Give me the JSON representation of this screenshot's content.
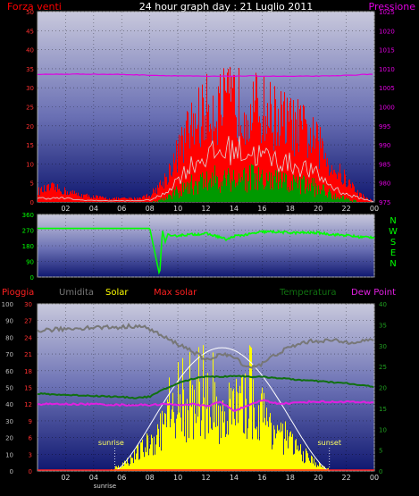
{
  "header": {
    "left_label": "Forza venti",
    "title": "24 hour graph day : 21 Luglio 2011",
    "right_label": "Pressione"
  },
  "colors": {
    "wind_max": "#ff0000",
    "wind_avg": "#d8d8d8",
    "wind_low": "#009900",
    "pressure": "#e000e0",
    "direction": "#00ff00",
    "rain": "#ff2020",
    "humidity": "#777777",
    "solar": "#ffff00",
    "max_solar": "#ffffff",
    "temperature": "#107010",
    "dew_point": "#e020e0",
    "compass": "#00ff00",
    "panel_top": "#c8c8dc",
    "panel_bottom": "#101870"
  },
  "chart_data": [
    {
      "type": "line",
      "name": "wind-pressure",
      "xticks": [
        "02",
        "04",
        "06",
        "08",
        "10",
        "12",
        "14",
        "16",
        "18",
        "20",
        "22",
        "00"
      ],
      "y_left_ticks": [
        "0",
        "5",
        "10",
        "15",
        "20",
        "25",
        "30",
        "35",
        "40",
        "45",
        "50"
      ],
      "y_right_ticks": [
        "975",
        "980",
        "985",
        "990",
        "995",
        "1000",
        "1005",
        "1010",
        "1015",
        "1020",
        "1025"
      ],
      "xlim": [
        0,
        24
      ],
      "ylim_left": [
        0,
        50
      ],
      "ylim_right": [
        975,
        1025
      ],
      "pressure_x": [
        0,
        3,
        6,
        9,
        12,
        15,
        18,
        21,
        24
      ],
      "pressure_y": [
        1008.5,
        1008.6,
        1008.5,
        1008.2,
        1008.0,
        1008.1,
        1008.0,
        1008.1,
        1008.6
      ],
      "wind_max_envelope_x": [
        0,
        1,
        2,
        3,
        5,
        7,
        8,
        9,
        10,
        11,
        12,
        13,
        14,
        15,
        16,
        17,
        18,
        19,
        20,
        21,
        22,
        23,
        24
      ],
      "wind_max_envelope_y": [
        3,
        4,
        3,
        2,
        1,
        1,
        2,
        6,
        14,
        22,
        26,
        27,
        28,
        27,
        26,
        24,
        22,
        20,
        16,
        10,
        6,
        2,
        0
      ],
      "wind_avg_envelope_y": [
        1,
        1,
        1,
        0.5,
        0.3,
        0.3,
        0.5,
        2,
        6,
        10,
        12,
        13,
        14,
        13,
        12,
        11,
        10,
        9,
        7,
        4,
        2,
        1,
        0
      ],
      "wind_low_envelope_y": [
        0,
        0,
        0,
        0,
        0,
        0,
        0,
        1,
        3,
        5,
        6,
        7,
        7,
        7,
        6,
        6,
        5,
        5,
        4,
        2,
        1,
        0,
        0
      ]
    },
    {
      "type": "line",
      "name": "wind-direction",
      "xticks": [
        "02",
        "04",
        "06",
        "08",
        "10",
        "12",
        "14",
        "16",
        "18",
        "20",
        "22",
        "00"
      ],
      "yticks": [
        "0",
        "90",
        "180",
        "270",
        "360"
      ],
      "ylim": [
        0,
        360
      ],
      "compass_labels": [
        "N",
        "W",
        "S",
        "E",
        "N"
      ],
      "x": [
        0,
        2,
        4,
        6,
        8,
        8.7,
        8.9,
        9.1,
        9.3,
        9.5,
        10,
        11,
        12,
        13,
        13.5,
        14,
        15,
        16,
        17,
        18,
        19,
        20,
        21,
        22,
        23,
        24
      ],
      "y": [
        280,
        280,
        280,
        280,
        280,
        10,
        270,
        200,
        250,
        230,
        240,
        245,
        250,
        230,
        215,
        235,
        245,
        260,
        260,
        255,
        255,
        255,
        245,
        240,
        230,
        230
      ]
    },
    {
      "type": "line",
      "name": "solar-temperature",
      "legend": [
        "Pioggia",
        "Umidita",
        "Solar",
        "Max solar",
        "Temperatura",
        "Dew Point"
      ],
      "xticks": [
        "02",
        "04",
        "06",
        "08",
        "10",
        "12",
        "14",
        "16",
        "18",
        "20",
        "22",
        "00"
      ],
      "y_humidity_ticks": [
        "0",
        "10",
        "20",
        "30",
        "40",
        "50",
        "60",
        "70",
        "80",
        "90",
        "100"
      ],
      "y_rain_ticks": [
        "0",
        "3",
        "6",
        "9",
        "12",
        "15",
        "18",
        "21",
        "24",
        "27",
        "30"
      ],
      "y_temp_ticks": [
        "0",
        "5",
        "10",
        "15",
        "20",
        "25",
        "30",
        "35",
        "40"
      ],
      "sunrise_label": "sunrise",
      "sunset_label": "sunset",
      "sunrise_hour": 5.5,
      "sunset_hour": 20.8,
      "humidity_x": [
        0,
        2,
        4,
        6,
        7,
        8,
        9,
        10,
        11,
        12,
        13,
        14,
        15,
        16,
        17,
        18,
        19,
        20,
        21,
        22,
        23,
        24
      ],
      "humidity_y": [
        84,
        85,
        86,
        86,
        87,
        85,
        80,
        76,
        72,
        66,
        70,
        68,
        62,
        64,
        70,
        74,
        77,
        78,
        78,
        77,
        78,
        78
      ],
      "temperature_x": [
        0,
        2,
        4,
        6,
        7,
        8,
        9,
        10,
        11,
        12,
        13,
        14,
        15,
        16,
        17,
        18,
        19,
        20,
        21,
        22,
        23,
        24
      ],
      "temperature_y": [
        18.5,
        18.2,
        18.0,
        17.7,
        17.5,
        17.8,
        19.5,
        21.0,
        22.0,
        22.7,
        22.5,
        22.8,
        22.6,
        22.5,
        22.3,
        22.0,
        21.7,
        21.5,
        21.2,
        21.0,
        20.5,
        20.2
      ],
      "dew_point_x": [
        0,
        2,
        4,
        6,
        8,
        9,
        10,
        11,
        12,
        13,
        14,
        15,
        16,
        17,
        18,
        19,
        20,
        21,
        22,
        23,
        24
      ],
      "dew_point_y": [
        16.0,
        16.0,
        16.0,
        15.8,
        15.8,
        16.0,
        15.8,
        16.0,
        15.5,
        16.5,
        14.5,
        15.5,
        17.0,
        16.2,
        16.2,
        16.5,
        16.6,
        16.5,
        16.6,
        16.4,
        16.3
      ],
      "max_solar_peak_temp_units": 29.5,
      "solar_envelope_x": [
        0,
        5,
        6,
        7,
        8,
        9,
        10,
        11,
        12,
        13,
        14,
        15,
        16,
        17,
        18,
        19,
        20,
        21,
        24
      ],
      "solar_envelope_y": [
        0,
        0,
        2,
        5,
        9,
        14,
        18,
        20,
        21,
        18,
        20,
        21,
        18,
        13,
        9,
        5,
        2,
        0,
        0
      ]
    }
  ]
}
